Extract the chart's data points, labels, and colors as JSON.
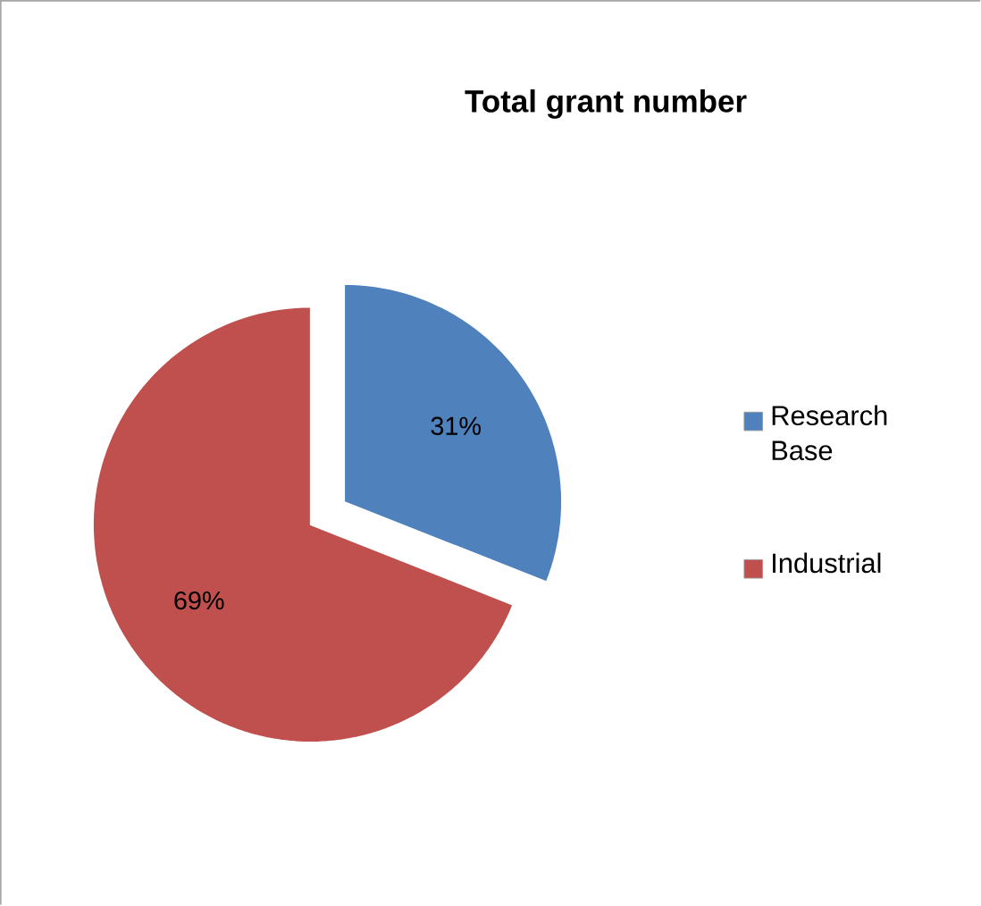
{
  "chart_data": {
    "type": "pie",
    "title": "Total grant number",
    "categories": [
      "Research Base",
      "Industrial"
    ],
    "values": [
      31,
      69
    ],
    "colors": [
      "#4f81bd",
      "#c0504d"
    ],
    "value_labels": [
      "31%",
      "69%"
    ],
    "legend": "right"
  }
}
